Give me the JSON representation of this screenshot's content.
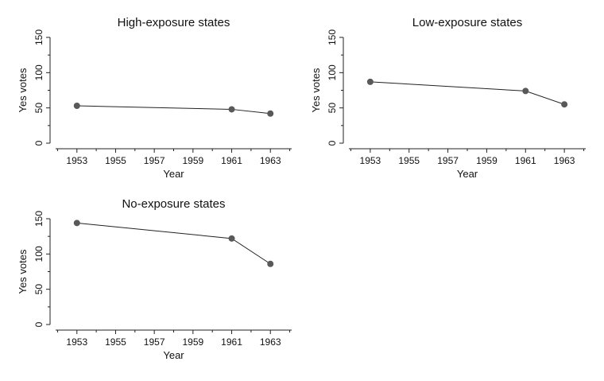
{
  "chart_data": [
    {
      "type": "line",
      "title": "High-exposure states",
      "xlabel": "Year",
      "ylabel": "Yes votes",
      "x_ticks": [
        1953,
        1955,
        1957,
        1959,
        1961,
        1963
      ],
      "y_ticks": [
        0,
        50,
        100,
        150
      ],
      "xlim": [
        1951.9,
        1964.1
      ],
      "ylim": [
        0,
        150
      ],
      "grid": false,
      "series": [
        {
          "x": [
            1953,
            1961,
            1963
          ],
          "y": [
            53,
            48,
            42
          ]
        }
      ]
    },
    {
      "type": "line",
      "title": "Low-exposure states",
      "xlabel": "Year",
      "ylabel": "Yes votes",
      "x_ticks": [
        1953,
        1955,
        1957,
        1959,
        1961,
        1963
      ],
      "y_ticks": [
        0,
        50,
        100,
        150
      ],
      "xlim": [
        1951.9,
        1964.1
      ],
      "ylim": [
        0,
        150
      ],
      "grid": false,
      "series": [
        {
          "x": [
            1953,
            1961,
            1963
          ],
          "y": [
            87,
            74,
            55
          ]
        }
      ]
    },
    {
      "type": "line",
      "title": "No-exposure  states",
      "xlabel": "Year",
      "ylabel": "Yes votes",
      "x_ticks": [
        1953,
        1955,
        1957,
        1959,
        1961,
        1963
      ],
      "y_ticks": [
        0,
        50,
        100,
        150
      ],
      "xlim": [
        1951.9,
        1964.1
      ],
      "ylim": [
        0,
        150
      ],
      "grid": false,
      "series": [
        {
          "x": [
            1953,
            1961,
            1963
          ],
          "y": [
            144,
            122,
            86
          ]
        }
      ]
    }
  ]
}
